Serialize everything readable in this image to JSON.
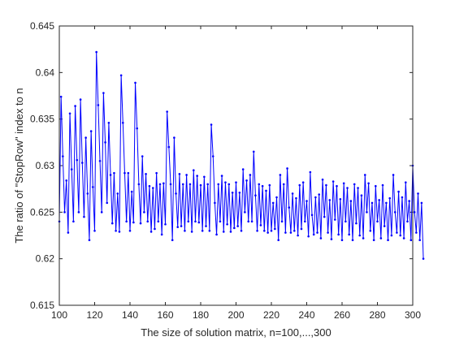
{
  "chart_data": {
    "type": "line",
    "title": "",
    "xlabel": "The size of solution matrix, n=100,...,300",
    "ylabel": "The ratio of \"StopRow\" index to n",
    "xlim": [
      100,
      300
    ],
    "ylim": [
      0.615,
      0.645
    ],
    "xticks": [
      100,
      120,
      140,
      160,
      180,
      200,
      220,
      240,
      260,
      280,
      300
    ],
    "xtick_labels": [
      "100",
      "120",
      "140",
      "160",
      "180",
      "200",
      "220",
      "240",
      "260",
      "280",
      "300"
    ],
    "yticks": [
      0.615,
      0.62,
      0.625,
      0.63,
      0.635,
      0.64,
      0.645
    ],
    "ytick_labels": [
      "0.615",
      "0.62",
      "0.625",
      "0.63",
      "0.635",
      "0.64",
      "0.645"
    ],
    "grid": false,
    "box": true,
    "line_color": "#0000ff",
    "marker": "dot",
    "series": [
      {
        "x_start": 100,
        "x_step": 1,
        "values": [
          0.624,
          0.6374,
          0.631,
          0.625,
          0.6284,
          0.6228,
          0.6356,
          0.6296,
          0.624,
          0.6364,
          0.6306,
          0.625,
          0.6371,
          0.6303,
          0.6245,
          0.633,
          0.627,
          0.622,
          0.6337,
          0.6277,
          0.623,
          0.6422,
          0.6365,
          0.6305,
          0.625,
          0.6378,
          0.6325,
          0.626,
          0.6346,
          0.629,
          0.6238,
          0.6292,
          0.623,
          0.627,
          0.6229,
          0.6397,
          0.6346,
          0.6292,
          0.624,
          0.6292,
          0.623,
          0.6272,
          0.6239,
          0.6389,
          0.634,
          0.628,
          0.6238,
          0.631,
          0.625,
          0.6291,
          0.624,
          0.6278,
          0.6229,
          0.6276,
          0.6232,
          0.6292,
          0.624,
          0.628,
          0.6226,
          0.6281,
          0.6237,
          0.6358,
          0.632,
          0.628,
          0.622,
          0.633,
          0.627,
          0.6234,
          0.6291,
          0.6235,
          0.628,
          0.623,
          0.629,
          0.624,
          0.628,
          0.6229,
          0.6295,
          0.624,
          0.6289,
          0.6239,
          0.6279,
          0.623,
          0.6288,
          0.6235,
          0.628,
          0.623,
          0.6344,
          0.631,
          0.626,
          0.6226,
          0.628,
          0.624,
          0.6289,
          0.6229,
          0.6282,
          0.6237,
          0.628,
          0.6229,
          0.6271,
          0.6233,
          0.6282,
          0.6235,
          0.6271,
          0.623,
          0.6296,
          0.625,
          0.6284,
          0.624,
          0.629,
          0.624,
          0.6315,
          0.6268,
          0.623,
          0.628,
          0.6236,
          0.6278,
          0.623,
          0.6273,
          0.6228,
          0.6279,
          0.623,
          0.626,
          0.6232,
          0.6266,
          0.622,
          0.629,
          0.624,
          0.628,
          0.6228,
          0.6297,
          0.6255,
          0.6228,
          0.627,
          0.623,
          0.6265,
          0.6225,
          0.6279,
          0.6232,
          0.6282,
          0.624,
          0.6262,
          0.6224,
          0.6293,
          0.6247,
          0.6226,
          0.6266,
          0.6228,
          0.6269,
          0.6222,
          0.6285,
          0.6245,
          0.6279,
          0.6228,
          0.6263,
          0.6221,
          0.6283,
          0.6242,
          0.6278,
          0.6226,
          0.6264,
          0.622,
          0.6281,
          0.624,
          0.6276,
          0.6226,
          0.6262,
          0.622,
          0.628,
          0.6238,
          0.6276,
          0.6225,
          0.6268,
          0.6222,
          0.629,
          0.625,
          0.6281,
          0.623,
          0.626,
          0.622,
          0.6278,
          0.624,
          0.6263,
          0.6222,
          0.6279,
          0.6235,
          0.626,
          0.622,
          0.6265,
          0.6225,
          0.629,
          0.625,
          0.6228,
          0.6272,
          0.6225,
          0.6266,
          0.6222,
          0.6282,
          0.624,
          0.6262,
          0.622,
          0.63,
          0.625,
          0.6228,
          0.627,
          0.622,
          0.626,
          0.62
        ]
      }
    ]
  }
}
